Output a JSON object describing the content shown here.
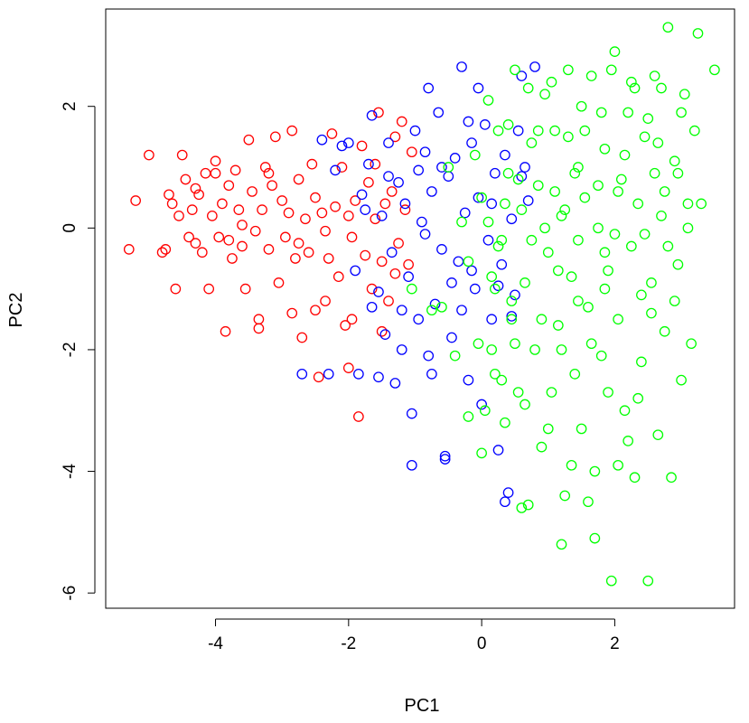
{
  "chart_data": {
    "type": "scatter",
    "title": "",
    "xlabel": "PC1",
    "ylabel": "PC2",
    "xlim": [
      -5.65,
      3.8
    ],
    "ylim": [
      -6.25,
      3.6
    ],
    "xticks": [
      -4,
      -2,
      0,
      2
    ],
    "yticks": [
      -6,
      -4,
      -2,
      0,
      2
    ],
    "grid": false,
    "legend": "none",
    "series": [
      {
        "color": "#ff0000",
        "points": [
          [
            -5.3,
            -0.35
          ],
          [
            -5.2,
            0.45
          ],
          [
            -5.0,
            1.2
          ],
          [
            -4.8,
            -0.4
          ],
          [
            -4.75,
            -0.35
          ],
          [
            -4.7,
            0.55
          ],
          [
            -4.65,
            0.4
          ],
          [
            -4.6,
            -1.0
          ],
          [
            -4.55,
            0.2
          ],
          [
            -4.5,
            1.2
          ],
          [
            -4.45,
            0.8
          ],
          [
            -4.4,
            -0.15
          ],
          [
            -4.35,
            0.3
          ],
          [
            -4.3,
            -0.25
          ],
          [
            -4.25,
            0.55
          ],
          [
            -4.2,
            -0.4
          ],
          [
            -4.15,
            0.9
          ],
          [
            -4.1,
            -1.0
          ],
          [
            -4.05,
            0.2
          ],
          [
            -4.0,
            1.1
          ],
          [
            -3.95,
            -0.15
          ],
          [
            -3.9,
            0.4
          ],
          [
            -3.85,
            -1.7
          ],
          [
            -3.8,
            0.7
          ],
          [
            -3.75,
            -0.5
          ],
          [
            -3.7,
            0.95
          ],
          [
            -3.65,
            0.3
          ],
          [
            -3.6,
            -0.3
          ],
          [
            -3.55,
            -1.0
          ],
          [
            -3.5,
            1.45
          ],
          [
            -3.45,
            0.6
          ],
          [
            -3.4,
            -0.05
          ],
          [
            -3.35,
            -1.65
          ],
          [
            -3.3,
            0.3
          ],
          [
            -3.25,
            1.0
          ],
          [
            -3.2,
            -0.35
          ],
          [
            -3.15,
            0.7
          ],
          [
            -3.1,
            1.5
          ],
          [
            -3.05,
            -0.9
          ],
          [
            -3.0,
            0.45
          ],
          [
            -2.95,
            -0.15
          ],
          [
            -2.9,
            0.25
          ],
          [
            -2.85,
            1.6
          ],
          [
            -2.8,
            -0.5
          ],
          [
            -2.75,
            0.8
          ],
          [
            -2.7,
            -1.8
          ],
          [
            -2.65,
            0.15
          ],
          [
            -2.6,
            -0.4
          ],
          [
            -2.55,
            1.05
          ],
          [
            -2.5,
            0.5
          ],
          [
            -2.45,
            -2.45
          ],
          [
            -2.4,
            0.25
          ],
          [
            -2.35,
            -1.2
          ],
          [
            -2.3,
            -0.5
          ],
          [
            -2.25,
            1.55
          ],
          [
            -2.2,
            0.35
          ],
          [
            -2.15,
            -0.8
          ],
          [
            -2.1,
            1.0
          ],
          [
            -2.05,
            -1.6
          ],
          [
            -2.0,
            0.2
          ],
          [
            -1.95,
            -1.5
          ],
          [
            -1.9,
            0.45
          ],
          [
            -1.85,
            -3.1
          ],
          [
            -1.8,
            1.35
          ],
          [
            -1.75,
            -0.45
          ],
          [
            -1.7,
            0.75
          ],
          [
            -1.65,
            -1.0
          ],
          [
            -1.6,
            0.15
          ],
          [
            -1.55,
            1.9
          ],
          [
            -1.5,
            -0.55
          ],
          [
            -1.45,
            0.4
          ],
          [
            -1.4,
            -1.2
          ],
          [
            -1.35,
            0.6
          ],
          [
            -1.3,
            1.5
          ],
          [
            -1.25,
            -0.25
          ],
          [
            -1.2,
            1.75
          ],
          [
            -1.15,
            0.3
          ],
          [
            -1.1,
            -0.6
          ],
          [
            -1.05,
            1.25
          ],
          [
            -1.3,
            -0.75
          ],
          [
            -1.5,
            -1.7
          ],
          [
            -2.5,
            -1.35
          ],
          [
            -2.35,
            -0.05
          ],
          [
            -3.6,
            0.05
          ],
          [
            -4.0,
            0.9
          ],
          [
            -3.2,
            0.9
          ],
          [
            -2.75,
            -0.25
          ],
          [
            -1.95,
            -0.15
          ],
          [
            -1.6,
            1.05
          ],
          [
            -2.0,
            -2.3
          ],
          [
            -4.3,
            0.65
          ],
          [
            -3.8,
            -0.2
          ],
          [
            -2.85,
            -1.4
          ],
          [
            -3.35,
            -1.5
          ]
        ]
      },
      {
        "color": "#0000ff",
        "points": [
          [
            -2.7,
            -2.4
          ],
          [
            -2.4,
            1.45
          ],
          [
            -2.2,
            0.95
          ],
          [
            -2.0,
            1.4
          ],
          [
            -1.9,
            -0.7
          ],
          [
            -1.85,
            -2.4
          ],
          [
            -1.8,
            0.55
          ],
          [
            -1.7,
            1.05
          ],
          [
            -1.65,
            1.85
          ],
          [
            -1.55,
            -1.05
          ],
          [
            -1.5,
            0.2
          ],
          [
            -1.45,
            -1.75
          ],
          [
            -1.4,
            1.4
          ],
          [
            -1.35,
            -0.4
          ],
          [
            -1.3,
            -2.55
          ],
          [
            -1.25,
            0.75
          ],
          [
            -1.2,
            -1.35
          ],
          [
            -1.15,
            0.4
          ],
          [
            -1.1,
            -0.8
          ],
          [
            -1.05,
            -3.05
          ],
          [
            -1.0,
            1.6
          ],
          [
            -0.95,
            -1.5
          ],
          [
            -0.9,
            0.1
          ],
          [
            -0.85,
            1.25
          ],
          [
            -0.8,
            -2.1
          ],
          [
            -0.75,
            0.6
          ],
          [
            -0.7,
            -1.25
          ],
          [
            -0.65,
            1.9
          ],
          [
            -0.6,
            -0.35
          ],
          [
            -0.55,
            -3.8
          ],
          [
            -0.5,
            0.85
          ],
          [
            -0.45,
            -1.8
          ],
          [
            -0.4,
            1.15
          ],
          [
            -0.35,
            -0.55
          ],
          [
            -0.3,
            2.65
          ],
          [
            -0.25,
            0.25
          ],
          [
            -0.2,
            -2.5
          ],
          [
            -0.15,
            1.4
          ],
          [
            -0.1,
            -1.0
          ],
          [
            -0.05,
            0.5
          ],
          [
            0.0,
            -2.9
          ],
          [
            0.05,
            1.7
          ],
          [
            0.1,
            -0.2
          ],
          [
            0.15,
            -1.5
          ],
          [
            0.2,
            0.9
          ],
          [
            0.25,
            -3.65
          ],
          [
            0.3,
            -0.6
          ],
          [
            0.35,
            1.2
          ],
          [
            0.4,
            -4.35
          ],
          [
            0.45,
            0.15
          ],
          [
            0.5,
            -1.1
          ],
          [
            0.55,
            1.6
          ],
          [
            0.6,
            0.85
          ],
          [
            0.65,
            1.0
          ],
          [
            0.7,
            0.45
          ],
          [
            0.8,
            2.65
          ],
          [
            -0.55,
            -3.75
          ],
          [
            -1.05,
            -3.9
          ],
          [
            0.35,
            -4.5
          ],
          [
            -0.8,
            2.3
          ],
          [
            -0.2,
            1.75
          ],
          [
            -1.4,
            0.85
          ],
          [
            -2.1,
            1.35
          ],
          [
            -1.65,
            -1.3
          ],
          [
            -0.95,
            0.95
          ],
          [
            -0.6,
            1.0
          ],
          [
            0.15,
            0.4
          ],
          [
            -0.3,
            -1.35
          ],
          [
            -1.2,
            -2.0
          ],
          [
            -0.45,
            -0.9
          ],
          [
            -0.85,
            -0.1
          ],
          [
            0.6,
            2.5
          ],
          [
            -1.75,
            0.3
          ],
          [
            -2.3,
            -2.4
          ],
          [
            -0.15,
            -0.7
          ],
          [
            -0.75,
            -2.4
          ],
          [
            0.25,
            -0.95
          ],
          [
            -0.05,
            2.3
          ],
          [
            -1.55,
            -2.45
          ],
          [
            0.45,
            -1.45
          ]
        ]
      },
      {
        "color": "#00ff00",
        "points": [
          [
            -1.05,
            -1.0
          ],
          [
            -0.75,
            -1.35
          ],
          [
            -0.6,
            -1.3
          ],
          [
            -0.5,
            1.0
          ],
          [
            -0.4,
            -2.1
          ],
          [
            -0.3,
            0.1
          ],
          [
            -0.2,
            -0.55
          ],
          [
            -0.1,
            1.2
          ],
          [
            -0.05,
            -1.9
          ],
          [
            0.0,
            0.5
          ],
          [
            0.05,
            -3.0
          ],
          [
            0.1,
            2.1
          ],
          [
            0.15,
            -0.8
          ],
          [
            0.2,
            -2.4
          ],
          [
            0.25,
            1.6
          ],
          [
            0.3,
            -0.2
          ],
          [
            0.35,
            -3.2
          ],
          [
            0.4,
            0.9
          ],
          [
            0.45,
            -1.2
          ],
          [
            0.5,
            2.6
          ],
          [
            0.55,
            -2.7
          ],
          [
            0.6,
            0.3
          ],
          [
            0.65,
            -0.9
          ],
          [
            0.7,
            -4.55
          ],
          [
            0.75,
            1.4
          ],
          [
            0.8,
            -2.0
          ],
          [
            0.85,
            0.7
          ],
          [
            0.9,
            -3.6
          ],
          [
            0.95,
            2.2
          ],
          [
            1.0,
            -0.4
          ],
          [
            1.05,
            -2.7
          ],
          [
            1.1,
            1.6
          ],
          [
            1.15,
            -1.6
          ],
          [
            1.2,
            0.2
          ],
          [
            1.25,
            -4.4
          ],
          [
            1.3,
            2.6
          ],
          [
            1.35,
            -0.8
          ],
          [
            1.4,
            -2.4
          ],
          [
            1.45,
            1.0
          ],
          [
            1.5,
            -3.3
          ],
          [
            1.55,
            0.5
          ],
          [
            1.6,
            -1.3
          ],
          [
            1.65,
            2.5
          ],
          [
            1.7,
            -5.1
          ],
          [
            1.75,
            0.0
          ],
          [
            1.8,
            -2.1
          ],
          [
            1.85,
            1.3
          ],
          [
            1.9,
            -0.7
          ],
          [
            1.95,
            -5.8
          ],
          [
            2.0,
            2.9
          ],
          [
            2.05,
            -1.5
          ],
          [
            2.1,
            0.8
          ],
          [
            2.15,
            -3.0
          ],
          [
            2.2,
            1.9
          ],
          [
            2.25,
            -0.3
          ],
          [
            2.3,
            -4.1
          ],
          [
            2.35,
            0.4
          ],
          [
            2.4,
            -2.2
          ],
          [
            2.45,
            1.5
          ],
          [
            2.5,
            -5.8
          ],
          [
            2.55,
            -0.9
          ],
          [
            2.6,
            2.5
          ],
          [
            2.65,
            -3.4
          ],
          [
            2.7,
            0.2
          ],
          [
            2.75,
            -1.7
          ],
          [
            2.8,
            3.3
          ],
          [
            2.85,
            -4.1
          ],
          [
            2.9,
            1.1
          ],
          [
            2.95,
            -0.6
          ],
          [
            3.0,
            -2.5
          ],
          [
            3.05,
            2.2
          ],
          [
            3.1,
            0.4
          ],
          [
            3.15,
            -1.9
          ],
          [
            3.2,
            1.6
          ],
          [
            3.25,
            3.2
          ],
          [
            3.3,
            0.4
          ],
          [
            3.5,
            2.6
          ],
          [
            2.3,
            2.3
          ],
          [
            1.7,
            -4.0
          ],
          [
            1.2,
            -5.2
          ],
          [
            0.5,
            -1.9
          ],
          [
            0.85,
            1.6
          ],
          [
            1.45,
            -0.2
          ],
          [
            2.05,
            0.6
          ],
          [
            2.4,
            -1.1
          ],
          [
            0.7,
            2.3
          ],
          [
            1.3,
            1.5
          ],
          [
            1.8,
            1.9
          ],
          [
            2.6,
            0.9
          ],
          [
            0.2,
            -1.0
          ],
          [
            1.0,
            -3.3
          ],
          [
            1.6,
            -4.5
          ],
          [
            2.2,
            -3.5
          ],
          [
            0.6,
            -4.6
          ],
          [
            1.1,
            0.6
          ],
          [
            2.8,
            -0.3
          ],
          [
            3.1,
            0.0
          ],
          [
            0.4,
            1.7
          ],
          [
            1.9,
            -2.7
          ],
          [
            2.5,
            1.8
          ],
          [
            0.3,
            -2.5
          ],
          [
            1.5,
            2.0
          ],
          [
            2.0,
            -0.1
          ],
          [
            0.9,
            -1.5
          ],
          [
            1.4,
            0.9
          ],
          [
            2.7,
            2.3
          ],
          [
            0.0,
            -3.7
          ],
          [
            1.2,
            -2.0
          ],
          [
            1.75,
            0.7
          ],
          [
            2.35,
            -2.8
          ],
          [
            0.55,
            0.8
          ],
          [
            1.05,
            2.4
          ],
          [
            2.15,
            1.2
          ],
          [
            0.25,
            -0.3
          ],
          [
            1.65,
            -1.9
          ],
          [
            2.9,
            -1.2
          ],
          [
            3.0,
            1.9
          ],
          [
            0.75,
            -0.2
          ],
          [
            1.35,
            -3.9
          ],
          [
            2.45,
            -0.1
          ],
          [
            -0.2,
            -3.1
          ],
          [
            0.1,
            0.1
          ],
          [
            1.85,
            -1.0
          ],
          [
            2.75,
            0.6
          ],
          [
            1.55,
            1.6
          ],
          [
            0.45,
            -1.5
          ],
          [
            2.25,
            2.4
          ],
          [
            0.95,
            0.0
          ],
          [
            1.95,
            2.6
          ],
          [
            2.55,
            -1.4
          ],
          [
            0.15,
            -2.0
          ],
          [
            1.15,
            -0.7
          ],
          [
            2.05,
            -3.9
          ],
          [
            1.45,
            -1.2
          ],
          [
            2.65,
            1.4
          ],
          [
            0.65,
            -2.9
          ],
          [
            1.25,
            0.3
          ],
          [
            1.85,
            -0.4
          ],
          [
            0.35,
            0.4
          ],
          [
            2.95,
            0.9
          ]
        ]
      }
    ]
  }
}
